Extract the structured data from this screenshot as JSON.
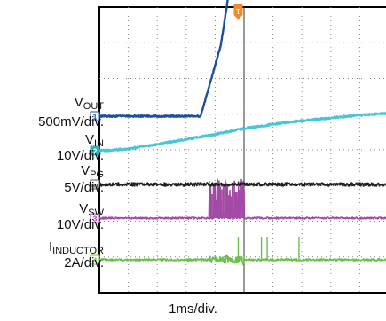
{
  "chart_data": {
    "type": "line",
    "title": "",
    "xlabel": "1ms/div.",
    "time_per_div_ms": 1,
    "grid": true,
    "h_divs": 10,
    "v_divs": 8,
    "trigger_marker": {
      "label": "T",
      "time_ms": 4.8
    },
    "colors": {
      "vout": "#1f4e9e",
      "vin": "#46c6d8",
      "vpg": "#202020",
      "vsw": "#a24aa6",
      "iind": "#6cc04a",
      "trigger": "#f08a2a"
    },
    "channels": [
      {
        "key": "vout",
        "marker": "1",
        "name_main": "V",
        "name_sub": "OUT",
        "scale": "500mV/div.",
        "units_per_div": 0.5,
        "unit": "V",
        "times_ms": [
          0,
          3.5,
          4.2,
          4.9,
          5.0,
          10
        ],
        "values": [
          0,
          0,
          1.0,
          2.85,
          3.1,
          3.1
        ]
      },
      {
        "key": "vin",
        "marker": "2",
        "name_main": "V",
        "name_sub": "IN",
        "scale": "10V/div.",
        "units_per_div": 10,
        "unit": "V",
        "times_ms": [
          0,
          1,
          2,
          3,
          4,
          5,
          6,
          7,
          8,
          9,
          10
        ],
        "values": [
          0,
          0.5,
          1.8,
          3.2,
          4.6,
          6.2,
          7.4,
          8.4,
          9.2,
          10.0,
          10.5
        ]
      },
      {
        "key": "vpg",
        "marker": "R1",
        "name_main": "V",
        "name_sub": "PG",
        "scale": "5V/div.",
        "units_per_div": 5,
        "unit": "V",
        "times_ms": [
          0,
          10
        ],
        "values": [
          0,
          0
        ]
      },
      {
        "key": "vsw",
        "marker": "3",
        "name_main": "V",
        "name_sub": "SW",
        "scale": "10V/div.",
        "units_per_div": 10,
        "unit": "V",
        "times_ms": [
          0,
          3.8,
          4.8,
          10
        ],
        "values": [
          0,
          0,
          0,
          0
        ],
        "switching_burst_ms": [
          3.8,
          5.0
        ],
        "switching_peak": 11
      },
      {
        "key": "iind",
        "marker": "4",
        "name_main": "I",
        "name_sub": "INDUCTOR",
        "scale": "2A/div.",
        "units_per_div": 2,
        "unit": "A",
        "times_ms": [
          0,
          10
        ],
        "values": [
          0,
          0
        ],
        "burst_ms": [
          3.8,
          5.0
        ],
        "spikes_ms": [
          4.8,
          5.6,
          5.8,
          6.9
        ]
      }
    ]
  }
}
